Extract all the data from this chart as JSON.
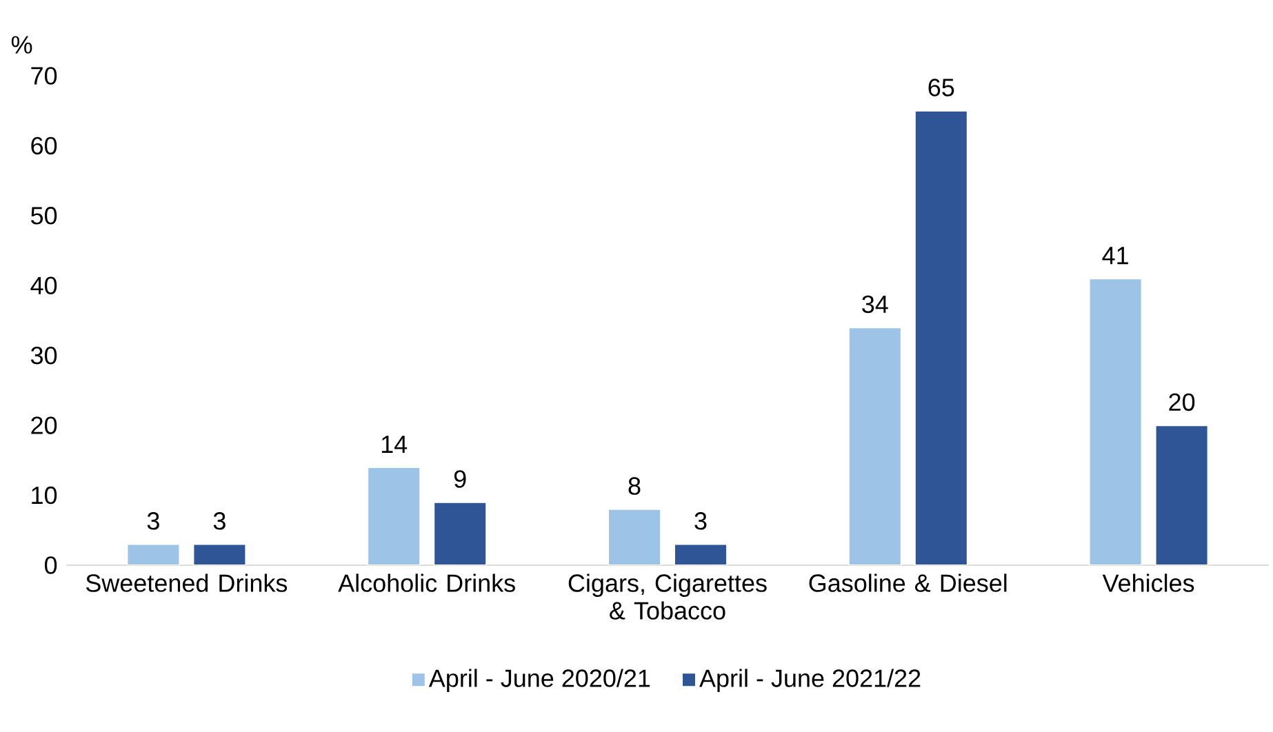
{
  "chart_data": {
    "type": "bar",
    "ylabel": "%",
    "categories": [
      "Sweetened Drinks",
      "Alcoholic Drinks",
      "Cigars, Cigarettes & Tobacco",
      "Gasoline & Diesel",
      "Vehicles"
    ],
    "series": [
      {
        "name": "April - June 2020/21",
        "color": "#9dc3e6",
        "values": [
          3,
          14,
          8,
          34,
          41
        ]
      },
      {
        "name": "April - June 2021/22",
        "color": "#2f5597",
        "values": [
          3,
          9,
          3,
          65,
          20
        ]
      }
    ],
    "ylim": [
      0,
      70
    ],
    "yticks": [
      0,
      10,
      20,
      30,
      40,
      50,
      60,
      70
    ],
    "data_labels": true,
    "legend": "bottom",
    "grid": false
  }
}
